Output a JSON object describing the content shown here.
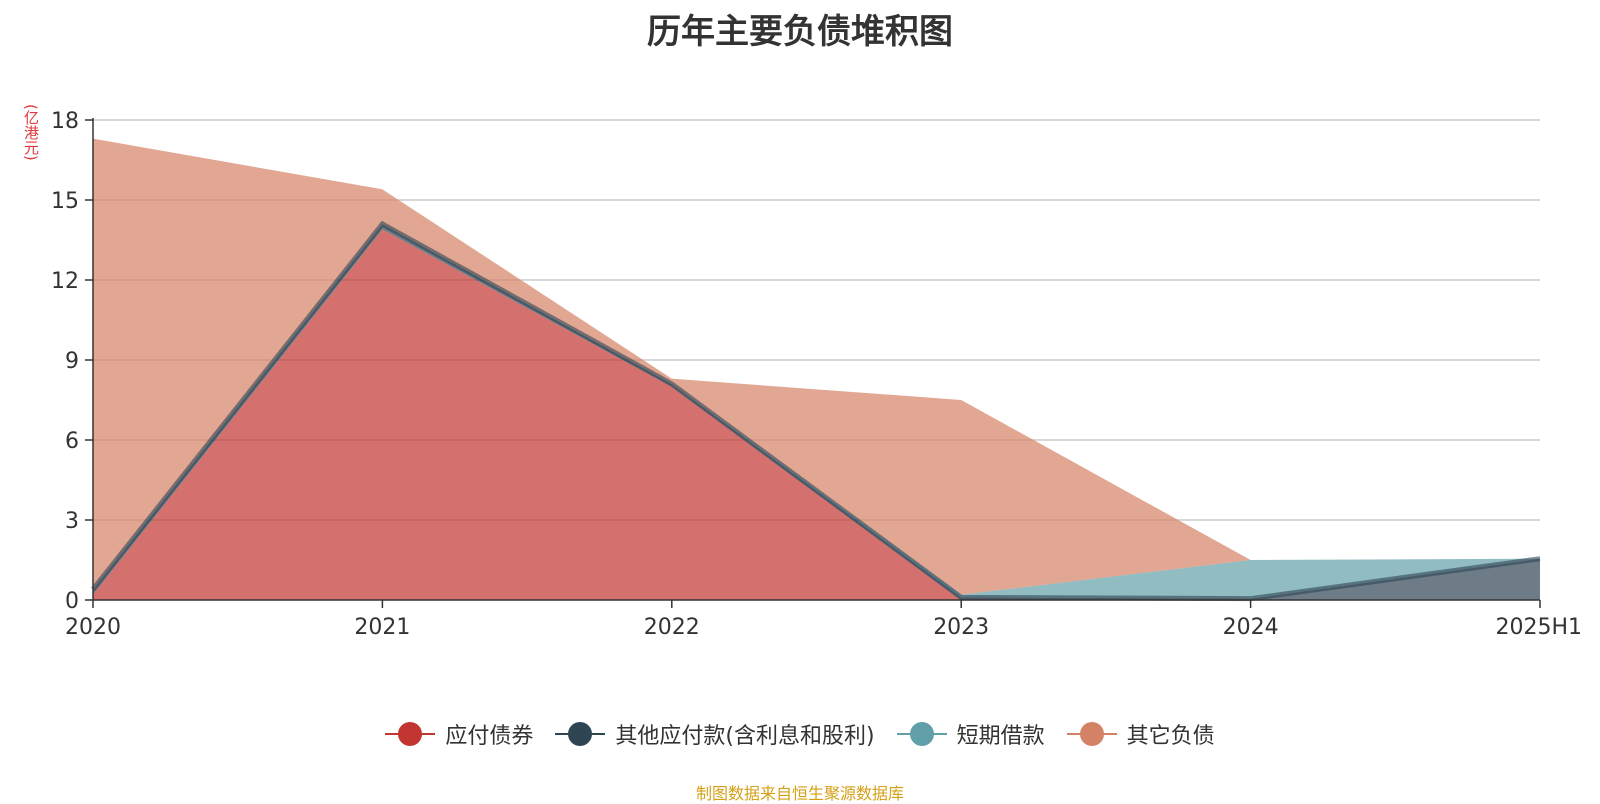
{
  "chart_data": {
    "type": "area",
    "title": "历年主要负债堆积图",
    "unit_label": "(亿港元)",
    "categories": [
      "2020",
      "2021",
      "2022",
      "2023",
      "2024",
      "2025H1"
    ],
    "ylim": [
      0,
      18
    ],
    "yticks": [
      0,
      3,
      6,
      9,
      12,
      15,
      18
    ],
    "stacked": true,
    "grid": true,
    "legend_position": "bottom",
    "series": [
      {
        "name": "应付债券",
        "color": "#c23531",
        "values": [
          0.2,
          13.9,
          8.0,
          0.0,
          0.0,
          0.0
        ]
      },
      {
        "name": "其他应付款(含利息和股利)",
        "color": "#2f4554",
        "values": [
          0.2,
          0.2,
          0.1,
          0.1,
          0.05,
          1.55
        ]
      },
      {
        "name": "短期借款",
        "color": "#61a0a8",
        "values": [
          0.0,
          0.0,
          0.0,
          0.1,
          1.45,
          0.0
        ]
      },
      {
        "name": "其它负债",
        "color": "#d48265",
        "values": [
          16.9,
          1.3,
          0.2,
          7.3,
          0.0,
          0.0
        ]
      }
    ]
  },
  "source_note": "制图数据来自恒生聚源数据库"
}
